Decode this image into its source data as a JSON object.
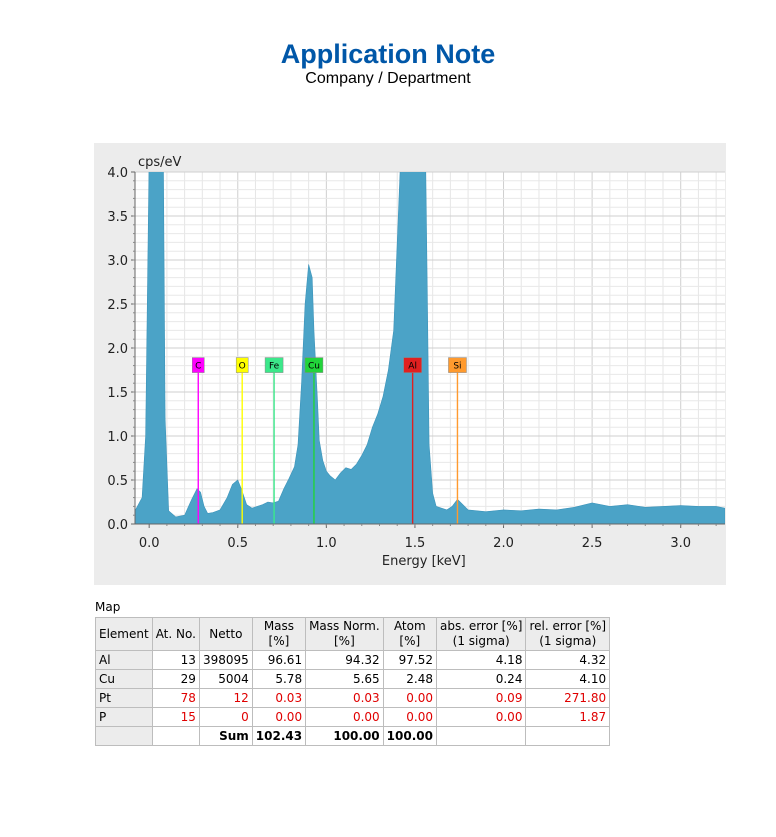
{
  "header": {
    "title": "Application Note",
    "subtitle": "Company / Department",
    "title_color": "#0057a8"
  },
  "chart_data": {
    "type": "area",
    "ylabel": "cps/eV",
    "xlabel": "Energy [keV]",
    "xlim": [
      -0.08,
      3.25
    ],
    "ylim": [
      0,
      4.0
    ],
    "x_ticks": [
      "0.0",
      "0.5",
      "1.0",
      "1.5",
      "2.0",
      "2.5",
      "3.0"
    ],
    "y_ticks": [
      "0.0",
      "0.5",
      "1.0",
      "1.5",
      "2.0",
      "2.5",
      "3.0",
      "3.5",
      "4.0"
    ],
    "grid": true,
    "fill_color": "#4ba3c7",
    "spectrum": {
      "x": [
        -0.08,
        -0.04,
        -0.02,
        0.0,
        0.05,
        0.08,
        0.09,
        0.11,
        0.15,
        0.2,
        0.24,
        0.27,
        0.29,
        0.31,
        0.33,
        0.36,
        0.4,
        0.44,
        0.47,
        0.5,
        0.52,
        0.55,
        0.58,
        0.61,
        0.64,
        0.67,
        0.7,
        0.73,
        0.76,
        0.79,
        0.82,
        0.84,
        0.86,
        0.88,
        0.9,
        0.92,
        0.93,
        0.95,
        0.96,
        0.98,
        1.0,
        1.02,
        1.05,
        1.08,
        1.11,
        1.14,
        1.17,
        1.2,
        1.23,
        1.26,
        1.29,
        1.32,
        1.35,
        1.38,
        1.4,
        1.42,
        1.44,
        1.45,
        1.46,
        1.47,
        1.48,
        1.5,
        1.52,
        1.54,
        1.55,
        1.56,
        1.57,
        1.58,
        1.6,
        1.62,
        1.65,
        1.68,
        1.71,
        1.74,
        1.76,
        1.8,
        1.85,
        1.9,
        2.0,
        2.1,
        2.2,
        2.3,
        2.4,
        2.5,
        2.6,
        2.7,
        2.8,
        2.9,
        3.0,
        3.1,
        3.2,
        3.25
      ],
      "y": [
        0.15,
        0.3,
        1.0,
        4.2,
        4.2,
        4.2,
        1.2,
        0.15,
        0.08,
        0.1,
        0.28,
        0.4,
        0.36,
        0.2,
        0.12,
        0.13,
        0.16,
        0.3,
        0.45,
        0.5,
        0.4,
        0.22,
        0.18,
        0.2,
        0.22,
        0.25,
        0.24,
        0.26,
        0.4,
        0.52,
        0.65,
        0.9,
        1.6,
        2.5,
        2.95,
        2.8,
        2.2,
        1.4,
        0.95,
        0.72,
        0.6,
        0.55,
        0.5,
        0.58,
        0.64,
        0.62,
        0.68,
        0.78,
        0.9,
        1.1,
        1.25,
        1.45,
        1.75,
        2.2,
        3.2,
        4.2,
        4.2,
        4.2,
        4.2,
        4.2,
        4.2,
        4.2,
        4.2,
        4.2,
        4.2,
        4.2,
        2.6,
        0.9,
        0.35,
        0.2,
        0.18,
        0.16,
        0.2,
        0.28,
        0.24,
        0.16,
        0.15,
        0.14,
        0.16,
        0.15,
        0.17,
        0.16,
        0.19,
        0.24,
        0.2,
        0.22,
        0.19,
        0.2,
        0.21,
        0.2,
        0.2,
        0.18
      ]
    },
    "element_markers": [
      {
        "label": "C",
        "energy": 0.277,
        "color": "#ff00ff"
      },
      {
        "label": "O",
        "energy": 0.525,
        "color": "#ffff00"
      },
      {
        "label": "Fe",
        "energy": 0.705,
        "color": "#3be88a"
      },
      {
        "label": "Cu",
        "energy": 0.93,
        "color": "#21d43a"
      },
      {
        "label": "Al",
        "energy": 1.487,
        "color": "#e02020"
      },
      {
        "label": "Si",
        "energy": 1.74,
        "color": "#ff9a2e"
      }
    ],
    "marker_level": 1.8
  },
  "results": {
    "section_label": "Map",
    "headers": [
      [
        "Element"
      ],
      [
        "At. No."
      ],
      [
        "Netto"
      ],
      [
        "Mass",
        "[%]"
      ],
      [
        "Mass Norm.",
        "[%]"
      ],
      [
        "Atom",
        "[%]"
      ],
      [
        "abs. error [%]",
        "(1 sigma)"
      ],
      [
        "rel. error [%]",
        "(1 sigma)"
      ]
    ],
    "rows": [
      {
        "element": "Al",
        "at_no": "13",
        "netto": "398095",
        "mass": "96.61",
        "mass_norm": "94.32",
        "atom": "97.52",
        "abs_err": "4.18",
        "rel_err": "4.32",
        "warn": false
      },
      {
        "element": "Cu",
        "at_no": "29",
        "netto": "5004",
        "mass": "5.78",
        "mass_norm": "5.65",
        "atom": "2.48",
        "abs_err": "0.24",
        "rel_err": "4.10",
        "warn": false
      },
      {
        "element": "Pt",
        "at_no": "78",
        "netto": "12",
        "mass": "0.03",
        "mass_norm": "0.03",
        "atom": "0.00",
        "abs_err": "0.09",
        "rel_err": "271.80",
        "warn": true
      },
      {
        "element": "P",
        "at_no": "15",
        "netto": "0",
        "mass": "0.00",
        "mass_norm": "0.00",
        "atom": "0.00",
        "abs_err": "0.00",
        "rel_err": "1.87",
        "warn": true
      }
    ],
    "sum": {
      "label": "Sum",
      "mass": "102.43",
      "mass_norm": "100.00",
      "atom": "100.00"
    }
  }
}
